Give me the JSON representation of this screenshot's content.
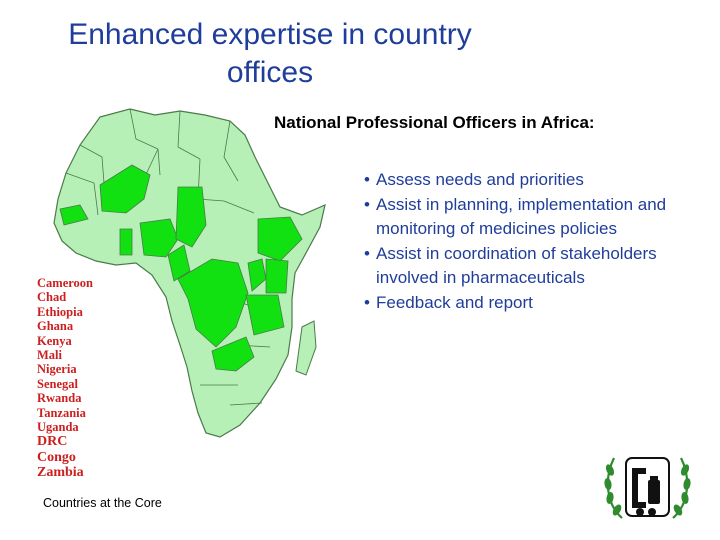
{
  "title_line1": "Enhanced expertise in country",
  "title_line2": "offices",
  "subtitle": "National Professional Officers in Africa:",
  "bullets": [
    "Assess needs and priorities",
    "Assist in planning, implementation and monitoring of medicines policies",
    "Assist in coordination of stakeholders involved in pharmaceuticals",
    "Feedback and report"
  ],
  "bullet_marker": "•",
  "countries": [
    "Cameroon",
    "Chad",
    "Ethiopia",
    "Ghana",
    "Kenya",
    "Mali",
    "Nigeria",
    "Senegal",
    "Rwanda",
    "Tanzania",
    "Uganda",
    "DRC",
    "Congo",
    "Zambia"
  ],
  "caption": "Countries at the Core",
  "map_icon": "africa-map",
  "emblem_icon": "who-emblem",
  "colors": {
    "title": "#1f3d9a",
    "bullet_text": "#1f3d9a",
    "country_list": "#cc1f1f",
    "map_highlight": "#11e011",
    "map_base": "#b6f0b6",
    "map_border": "#4a7a4a",
    "emblem_green": "#2e8b2e"
  }
}
